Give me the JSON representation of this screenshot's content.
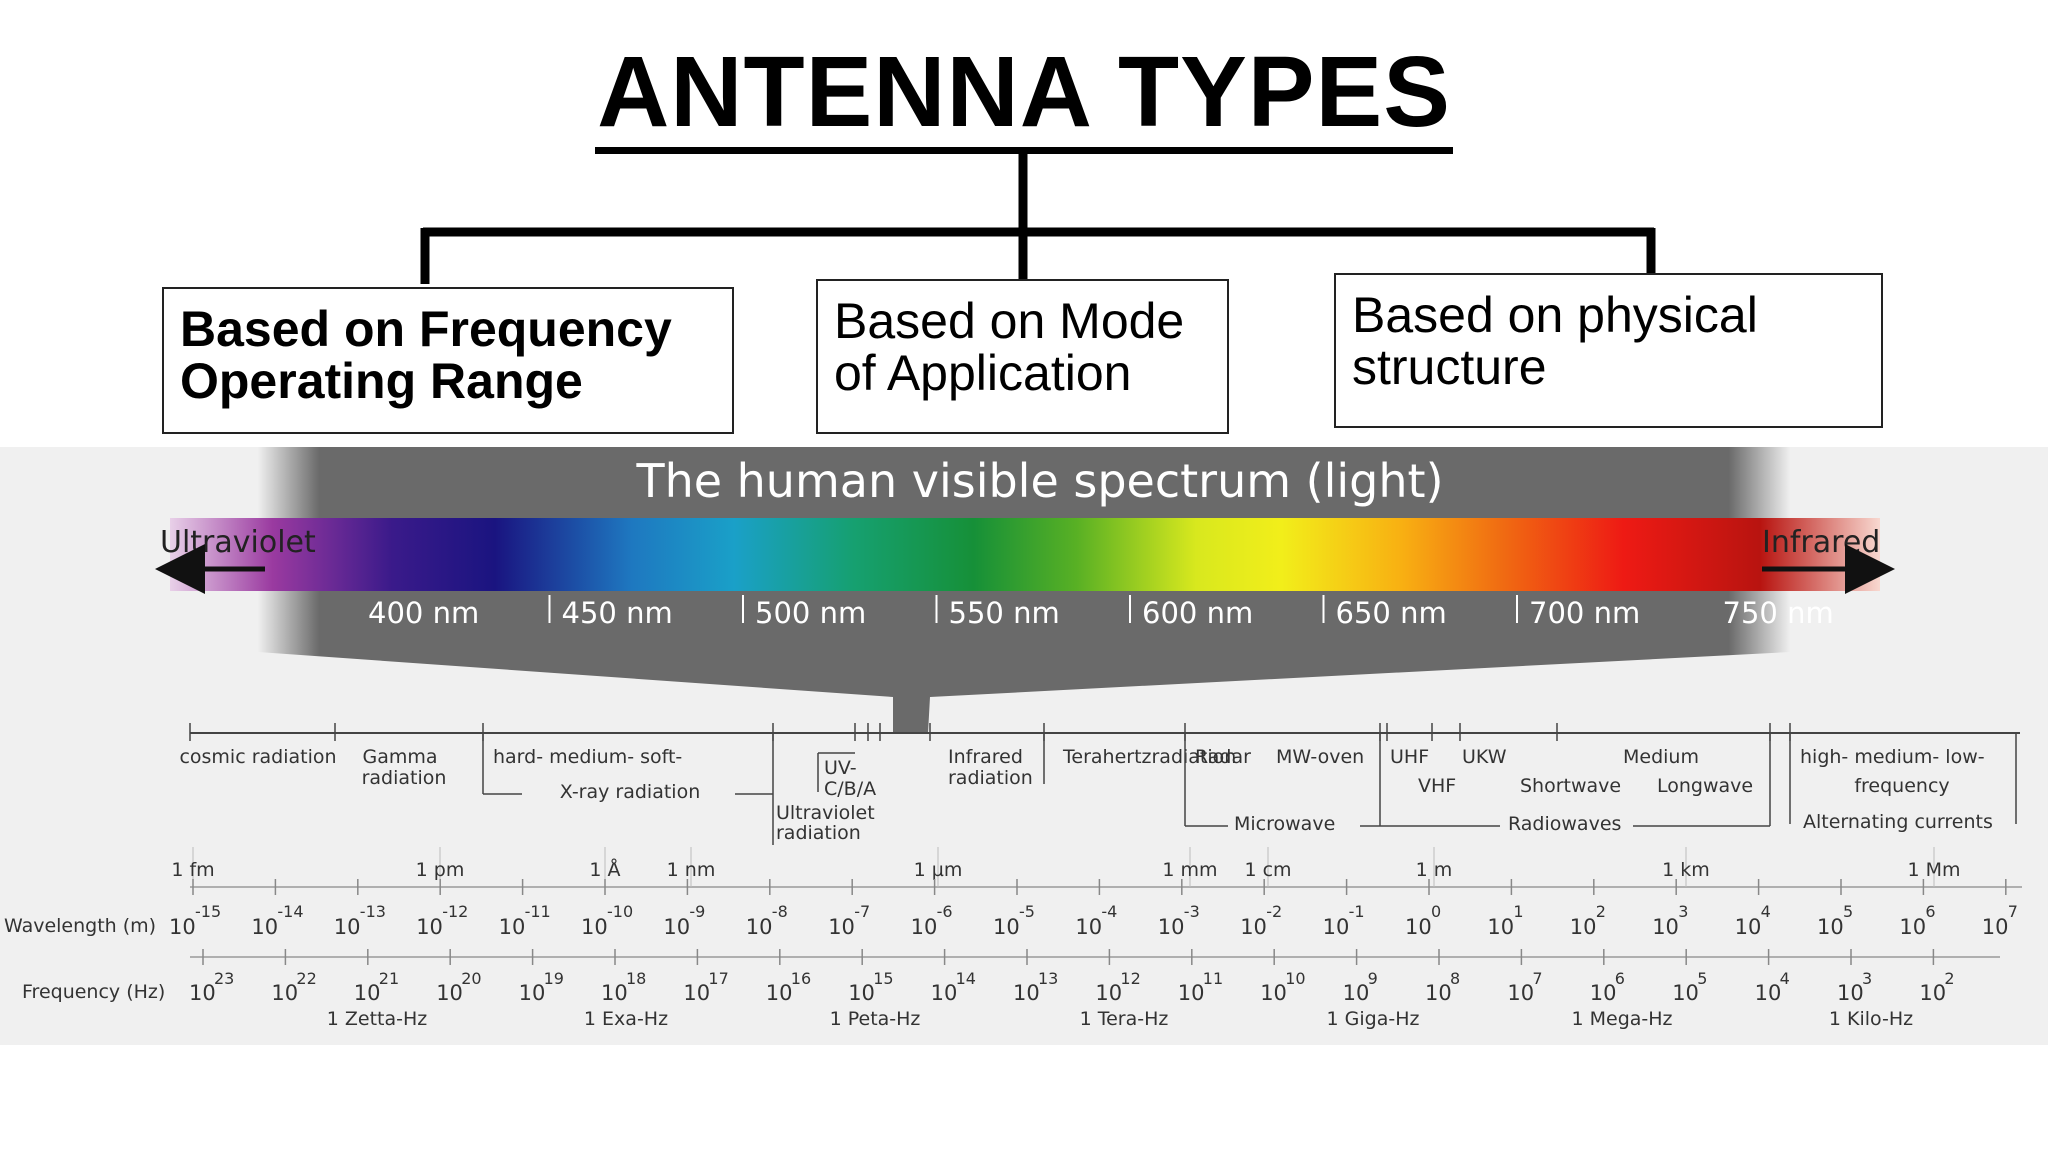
{
  "title": "ANTENNA TYPES",
  "categories": [
    "Based on Frequency Operating Range",
    "Based on Mode of Application",
    "Based on physical structure"
  ],
  "spectrum": {
    "header": "The human visible spectrum (light)",
    "left_label": "Ultraviolet",
    "right_label": "Infrared",
    "nm_ticks": [
      "400 nm",
      "450 nm",
      "500 nm",
      "550 nm",
      "600 nm",
      "650 nm",
      "700 nm",
      "750 nm"
    ],
    "bands": {
      "cosmic": "cosmic radiation",
      "gamma": [
        "Gamma",
        "radiation"
      ],
      "xray_top": "hard- medium- soft-",
      "xray_bottom": "X-ray radiation",
      "uv_sub": [
        "UV-",
        "C/B/A"
      ],
      "uv": [
        "Ultraviolet",
        "radiation"
      ],
      "infrared": [
        "Infrared",
        "radiation"
      ],
      "terahertz": "Terahertzradiation",
      "radar": "Radar",
      "mw_oven": "MW-oven",
      "microwave": "Microwave",
      "uhf": "UHF",
      "vhf": "VHF",
      "ukw": "UKW",
      "shortwave": "Shortwave",
      "medium": "Medium",
      "longwave": "Longwave",
      "radiowaves": "Radiowaves",
      "currents_top": "high- medium- low-",
      "currents_mid": "frequency",
      "currents_bottom": "Alternating currents"
    },
    "units": [
      "1 fm",
      "1 pm",
      "1 Å",
      "1 nm",
      "1 µm",
      "1 mm",
      "1 cm",
      "1 m",
      "1 km",
      "1 Mm"
    ],
    "wavelength_label": "Wavelength (m)",
    "wavelength_exponents": [
      "-15",
      "-14",
      "-13",
      "-12",
      "-11",
      "-10",
      "-9",
      "-8",
      "-7",
      "-6",
      "-5",
      "-4",
      "-3",
      "-2",
      "-1",
      "0",
      "1",
      "2",
      "3",
      "4",
      "5",
      "6",
      "7"
    ],
    "frequency_label": "Frequency (Hz)",
    "frequency_exponents": [
      "23",
      "22",
      "21",
      "20",
      "19",
      "18",
      "17",
      "16",
      "15",
      "14",
      "13",
      "12",
      "11",
      "10",
      "9",
      "8",
      "7",
      "6",
      "5",
      "4",
      "3",
      "2"
    ],
    "freq_names": [
      "1 Zetta-Hz",
      "1 Exa-Hz",
      "1 Peta-Hz",
      "1 Tera-Hz",
      "1 Giga-Hz",
      "1 Mega-Hz",
      "1 Kilo-Hz"
    ],
    "base": "10"
  }
}
